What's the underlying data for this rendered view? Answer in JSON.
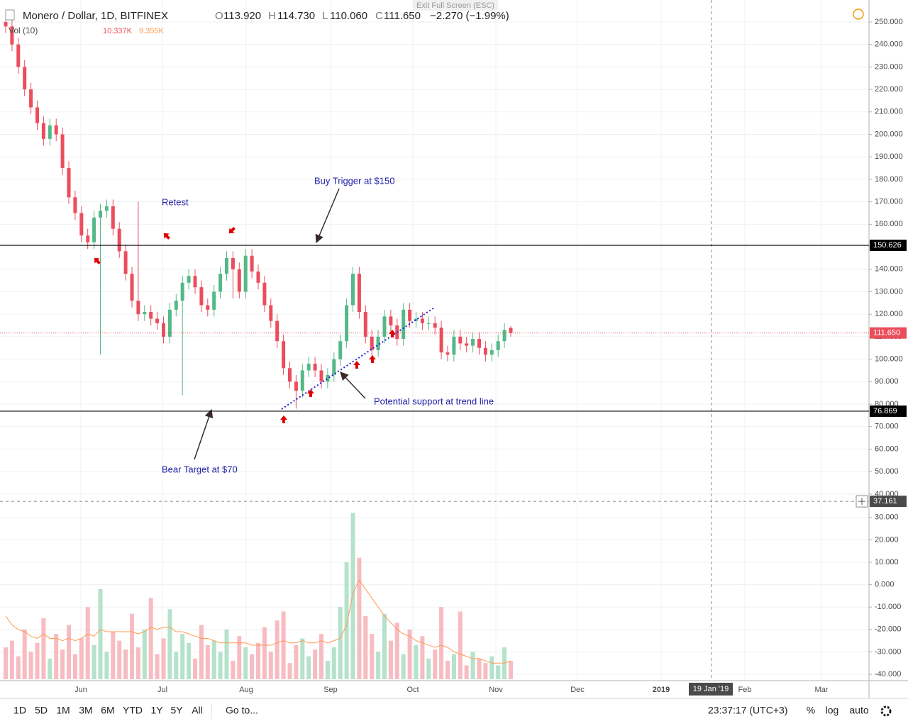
{
  "header": {
    "symbol": "Monero / Dollar, 1D, BITFINEX",
    "ohlc": [
      "O",
      "113.920",
      "H",
      "114.730",
      "L",
      "110.060",
      "C",
      "111.650"
    ],
    "change": "−2.270 (−1.99%)",
    "indicator": "Vol (10)",
    "vol_values": [
      "10.337K",
      "9.355K"
    ],
    "exit": "Exit Full Screen (ESC)"
  },
  "toolbar": {
    "ranges": [
      "1D",
      "5D",
      "1M",
      "3M",
      "6M",
      "YTD",
      "1Y",
      "5Y",
      "All"
    ],
    "goto": "Go to...",
    "time": "23:37:17 (UTC+3)",
    "options": [
      "%",
      "log",
      "auto"
    ]
  },
  "chart_data": [
    {
      "type": "candlestick",
      "categories": [
        null,
        null,
        null,
        null,
        null,
        null,
        null,
        null,
        null,
        null,
        null,
        null,
        null,
        null,
        null,
        null,
        null,
        null,
        null,
        null,
        null,
        null,
        null,
        null,
        null,
        null,
        null,
        null,
        null,
        null,
        null,
        null,
        null,
        null,
        null,
        null,
        null,
        null,
        null,
        null,
        null,
        null,
        null,
        null,
        null,
        null,
        null,
        null,
        null,
        null,
        null,
        null,
        null,
        null,
        null,
        null,
        null,
        null,
        null,
        null,
        null,
        null,
        null,
        null,
        null,
        null,
        null,
        null,
        null,
        null,
        null,
        null,
        null,
        null,
        null,
        null,
        null,
        null,
        null,
        null,
        null
      ],
      "open": [
        250,
        248,
        240,
        230,
        220,
        212,
        205,
        198,
        204,
        200,
        185,
        172,
        165,
        155,
        152,
        163,
        166,
        168,
        158,
        148,
        138,
        126,
        120,
        121,
        118,
        116,
        110,
        122,
        126,
        134,
        137,
        132,
        124,
        122,
        130,
        138,
        145,
        140,
        130,
        146,
        139,
        134,
        124,
        117,
        108,
        96,
        90,
        86,
        95,
        98,
        95,
        90,
        93,
        100,
        108,
        124,
        138,
        121,
        110,
        104,
        110,
        119,
        115,
        109,
        122,
        117,
        118,
        116,
        116,
        114,
        103,
        102,
        110,
        107,
        106,
        109,
        105,
        102,
        104,
        108,
        113.92
      ],
      "high": [
        253,
        251,
        243,
        233,
        223,
        215,
        208,
        207,
        207,
        203,
        188,
        175,
        168,
        158,
        166,
        169,
        171,
        171,
        161,
        151,
        141,
        170,
        124,
        124,
        121,
        119,
        125,
        129,
        137,
        140,
        140,
        135,
        127,
        133,
        141,
        148,
        148,
        143,
        149,
        149,
        142,
        137,
        127,
        120,
        111,
        99,
        93,
        98,
        101,
        101,
        98,
        96,
        103,
        111,
        127,
        141,
        141,
        124,
        113,
        113,
        122,
        122,
        118,
        125,
        125,
        121,
        121,
        119,
        119,
        117,
        106,
        113,
        113,
        110,
        112,
        112,
        108,
        107,
        111,
        116,
        114.73
      ],
      "low": [
        245,
        237,
        227,
        217,
        209,
        202,
        195,
        195,
        197,
        182,
        169,
        162,
        152,
        149,
        149,
        102,
        163,
        155,
        145,
        135,
        123,
        117,
        117,
        115,
        113,
        107,
        107,
        119,
        84,
        131,
        129,
        121,
        119,
        119,
        127,
        135,
        127,
        127,
        127,
        136,
        131,
        121,
        114,
        105,
        93,
        87,
        78,
        83,
        92,
        92,
        87,
        87,
        90,
        97,
        105,
        121,
        118,
        107,
        101,
        101,
        107,
        112,
        106,
        106,
        114,
        114,
        113,
        113,
        111,
        100,
        99,
        99,
        104,
        103,
        103,
        102,
        99,
        99,
        101,
        105,
        110.06
      ],
      "close": [
        248,
        240,
        230,
        220,
        212,
        205,
        198,
        204,
        200,
        185,
        172,
        165,
        155,
        152,
        163,
        166,
        168,
        158,
        148,
        138,
        126,
        120,
        121,
        118,
        116,
        110,
        122,
        126,
        134,
        137,
        132,
        124,
        122,
        130,
        138,
        145,
        140,
        130,
        146,
        139,
        134,
        124,
        117,
        108,
        96,
        90,
        86,
        95,
        98,
        95,
        90,
        93,
        100,
        108,
        124,
        138,
        121,
        110,
        104,
        110,
        119,
        115,
        109,
        122,
        117,
        118,
        116,
        116,
        114,
        103,
        102,
        110,
        107,
        106,
        109,
        105,
        102,
        104,
        108,
        113,
        111.65
      ],
      "up_color": "#53b987",
      "down_color": "#eb4d5c",
      "ylim": [
        36.8,
        258.5
      ],
      "yticks": [
        {
          "value": 250,
          "label": "250.000"
        },
        {
          "value": 240,
          "label": "240.000"
        },
        {
          "value": 230,
          "label": "230.000"
        },
        {
          "value": 220,
          "label": "220.000"
        },
        {
          "value": 210,
          "label": "210.000"
        },
        {
          "value": 200,
          "label": "200.000"
        },
        {
          "value": 190,
          "label": "190.000"
        },
        {
          "value": 180,
          "label": "180.000"
        },
        {
          "value": 170,
          "label": "170.000"
        },
        {
          "value": 160,
          "label": "160.000"
        },
        {
          "value": 150,
          "label": "150.000"
        },
        {
          "value": 140,
          "label": "140.000"
        },
        {
          "value": 130,
          "label": "130.000"
        },
        {
          "value": 120,
          "label": "120.000"
        },
        {
          "value": 110,
          "label": "110.000"
        },
        {
          "value": 100,
          "label": "100.000"
        },
        {
          "value": 90,
          "label": "90.000"
        },
        {
          "value": 80,
          "label": "80.000"
        },
        {
          "value": 70,
          "label": "70.000"
        },
        {
          "value": 60,
          "label": "60.000"
        },
        {
          "value": 50,
          "label": "50.000"
        },
        {
          "value": 40,
          "label": "40.000"
        }
      ],
      "grid": true,
      "x_labels": [
        "Jun",
        "Jul",
        "Aug",
        "Sep",
        "Oct",
        "Nov",
        "Dec",
        "2019",
        "Feb",
        "Mar"
      ],
      "crosshair_x_label": "19 Jan '19",
      "levels": [
        150.626,
        76.869
      ],
      "last_price": {
        "value": 111.65,
        "label": "111.650"
      },
      "annotations": [
        "Retest",
        "Buy Trigger at $150",
        "Bear Target at $70",
        "Potential support at trend line"
      ]
    },
    {
      "type": "bar",
      "values": [
        -28,
        -25,
        -32,
        -20,
        -30,
        -26,
        -15,
        -33,
        -22,
        -29,
        -18,
        -31,
        -24,
        -10,
        -27,
        -2,
        -30,
        -21,
        -25,
        -29,
        -13,
        -28,
        -20,
        -6,
        -31,
        -24,
        -11,
        -30,
        -22,
        -26,
        -33,
        -18,
        -27,
        -25,
        -30,
        -20,
        -34,
        -23,
        -28,
        -31,
        -26,
        -19,
        -30,
        -16,
        -12,
        -35,
        -27,
        -24,
        -32,
        -29,
        -22,
        -34,
        -28,
        -10,
        10,
        32,
        12,
        -14,
        -22,
        -30,
        -13,
        -25,
        -17,
        -31,
        -20,
        -27,
        -23,
        -33,
        -29,
        -10,
        -34,
        -31,
        -12,
        -36,
        -30,
        -33,
        -35,
        -32,
        -36,
        -28,
        -34
      ],
      "ma_values": [
        -14,
        -18,
        -20,
        -21,
        -23,
        -24,
        -22,
        -24,
        -24,
        -25,
        -24,
        -25,
        -24,
        -22,
        -23,
        -20,
        -21,
        -21,
        -21,
        -21,
        -21,
        -22,
        -21,
        -19,
        -20,
        -19,
        -19,
        -21,
        -21,
        -22,
        -23,
        -24,
        -24,
        -25,
        -26,
        -26,
        -26,
        -26,
        -26,
        -27,
        -27,
        -27,
        -27,
        -26,
        -25,
        -26,
        -26,
        -25,
        -26,
        -26,
        -25,
        -26,
        -25,
        -24,
        -18,
        -4,
        2,
        -2,
        -6,
        -10,
        -14,
        -17,
        -20,
        -22,
        -23,
        -25,
        -26,
        -27,
        -28,
        -27,
        -28,
        -30,
        -31,
        -32,
        -33,
        -33,
        -34,
        -35,
        -35,
        -35,
        -34
      ],
      "up_color": "#b5e2cb",
      "down_color": "#f7bcc1",
      "ma_color": "#ff9850",
      "ylim": [
        -42.2,
        37.2
      ],
      "yticks": [
        {
          "value": 30,
          "label": "30.000"
        },
        {
          "value": 20,
          "label": "20.000"
        },
        {
          "value": 10,
          "label": "10.000"
        },
        {
          "value": 0,
          "label": "0.000"
        },
        {
          "value": -10,
          "label": "-10.000"
        },
        {
          "value": -20,
          "label": "-20.000"
        },
        {
          "value": -30,
          "label": "-30.000"
        },
        {
          "value": -40,
          "label": "-40.000"
        }
      ],
      "crosshair_y": 37.161
    }
  ]
}
